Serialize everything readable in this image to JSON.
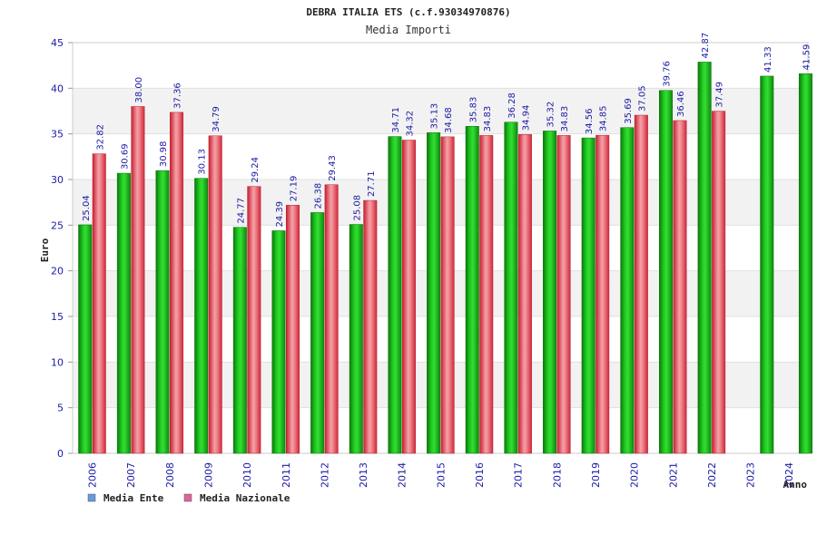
{
  "chart_data": {
    "type": "bar",
    "title": "DEBRA ITALIA ETS (c.f.93034970876)",
    "subtitle": "Media Importi",
    "xlabel": "Anno",
    "ylabel": "Euro",
    "ylim": [
      0,
      45
    ],
    "yticks": [
      "0",
      "5",
      "10",
      "15",
      "20",
      "25",
      "30",
      "35",
      "40",
      "45"
    ],
    "grid": true,
    "categories": [
      "2006",
      "2007",
      "2008",
      "2009",
      "2010",
      "2011",
      "2012",
      "2013",
      "2014",
      "2015",
      "2016",
      "2017",
      "2018",
      "2019",
      "2020",
      "2021",
      "2022",
      "2023",
      "2024"
    ],
    "series": [
      {
        "name": "Media Ente",
        "color": "#22bb22",
        "values": [
          25.04,
          30.69,
          30.98,
          30.13,
          24.77,
          24.39,
          26.38,
          25.08,
          34.71,
          35.13,
          35.83,
          36.28,
          35.32,
          34.56,
          35.69,
          39.76,
          42.87,
          41.33,
          41.59
        ],
        "labels": [
          "25.04",
          "30.69",
          "30.98",
          "30.13",
          "24.77",
          "24.39",
          "26.38",
          "25.08",
          "34.71",
          "35.13",
          "35.83",
          "36.28",
          "35.32",
          "34.56",
          "35.69",
          "39.76",
          "42.87",
          "41.33",
          "41.59"
        ]
      },
      {
        "name": "Media Nazionale",
        "color": "#e8384a",
        "values": [
          32.82,
          38.0,
          37.36,
          34.79,
          29.24,
          27.19,
          29.43,
          27.71,
          34.32,
          34.68,
          34.83,
          34.94,
          34.83,
          34.85,
          37.05,
          36.46,
          37.49,
          null,
          null
        ],
        "labels": [
          "32.82",
          "38.00",
          "37.36",
          "34.79",
          "29.24",
          "27.19",
          "29.43",
          "27.71",
          "34.32",
          "34.68",
          "34.83",
          "34.94",
          "34.83",
          "34.85",
          "37.05",
          "36.46",
          "37.49",
          null,
          null
        ]
      }
    ],
    "legend": [
      {
        "name": "Media Ente",
        "color": "#6699dd"
      },
      {
        "name": "Media Nazionale",
        "color": "#dd6699"
      }
    ],
    "legend_position": "bottom-left"
  }
}
